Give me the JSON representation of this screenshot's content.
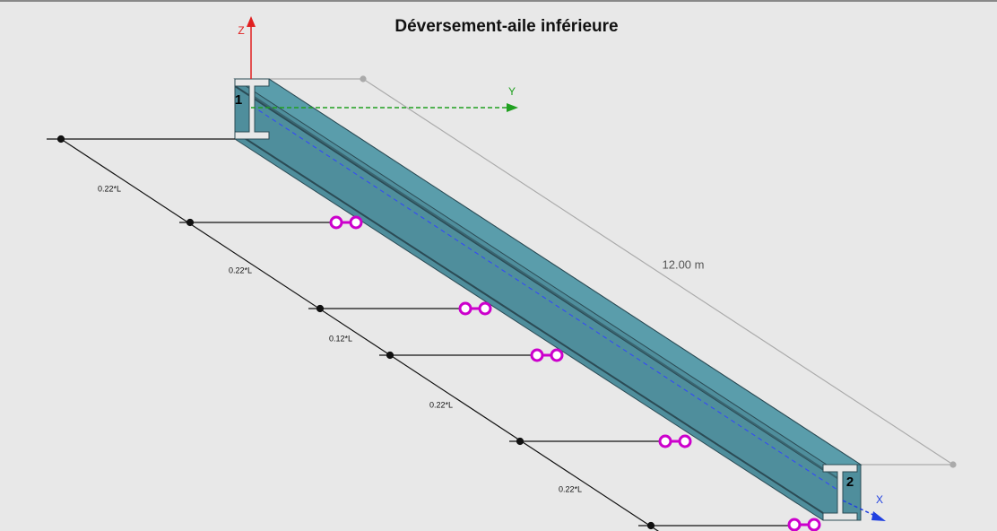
{
  "header": {
    "title": "Déversement-aile inférieure"
  },
  "axes": {
    "z": "Z",
    "y": "Y",
    "x": "X"
  },
  "nodes": [
    {
      "label": "1"
    },
    {
      "label": "2"
    }
  ],
  "dimension": {
    "label": "12.00 m"
  },
  "segments": [
    {
      "label": "0.22*L"
    },
    {
      "label": "0.22*L"
    },
    {
      "label": "0.12*L"
    },
    {
      "label": "0.22*L"
    },
    {
      "label": "0.22*L"
    }
  ]
}
